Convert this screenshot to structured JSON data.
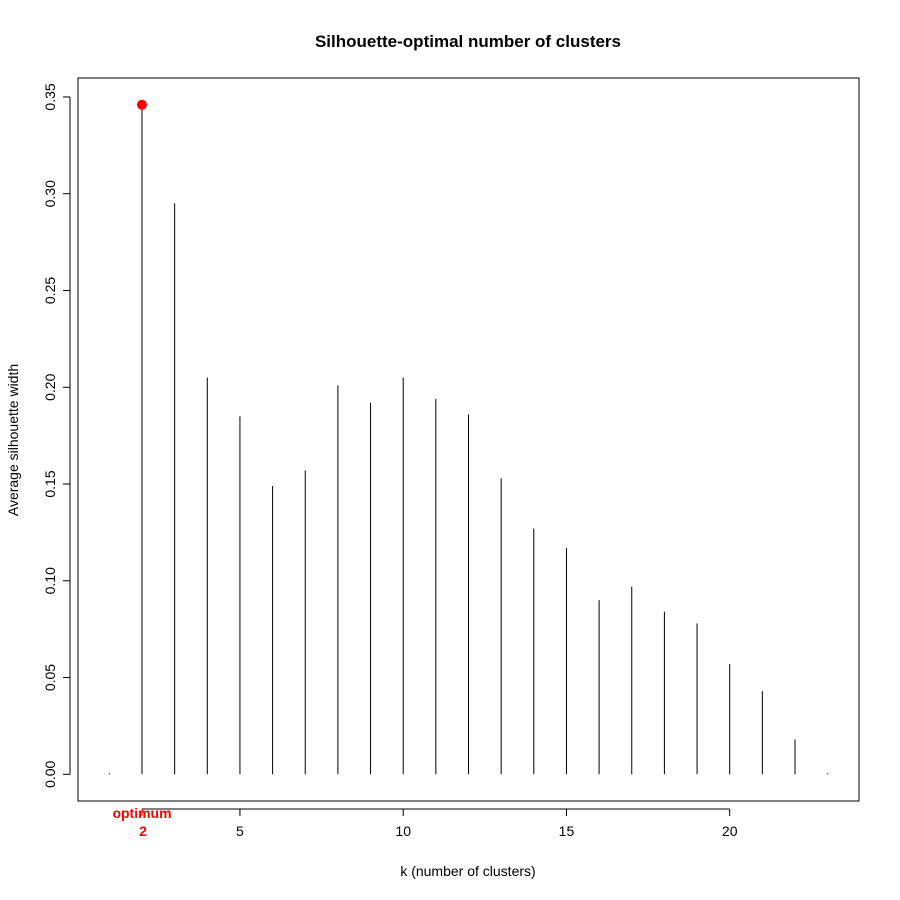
{
  "chart_data": {
    "type": "line",
    "subtype": "histogram-spikes",
    "title": "Silhouette-optimal number of clusters",
    "xlabel": "k (number of clusters)",
    "ylabel": "Average silhouette width",
    "x": [
      1,
      2,
      3,
      4,
      5,
      6,
      7,
      8,
      9,
      10,
      11,
      12,
      13,
      14,
      15,
      16,
      17,
      18,
      19,
      20,
      21,
      22,
      23
    ],
    "values": [
      0.0,
      0.346,
      0.295,
      0.205,
      0.185,
      0.149,
      0.157,
      0.201,
      0.192,
      0.205,
      0.194,
      0.186,
      0.153,
      0.127,
      0.117,
      0.09,
      0.097,
      0.084,
      0.078,
      0.057,
      0.043,
      0.018,
      0.0
    ],
    "xlim": [
      0.04,
      23.96
    ],
    "ylim": [
      -0.0138,
      0.3598
    ],
    "x_ticks": [
      5,
      10,
      15,
      20
    ],
    "y_ticks": [
      0.0,
      0.05,
      0.1,
      0.15,
      0.2,
      0.25,
      0.3,
      0.35
    ],
    "y_tick_labels": [
      "0.00",
      "0.05",
      "0.10",
      "0.15",
      "0.20",
      "0.25",
      "0.30",
      "0.35"
    ],
    "optimum": {
      "k": 2,
      "value": 0.346,
      "label": "optimum",
      "tick_label": "2",
      "color": "#ff0000"
    },
    "grid": false,
    "legend": "none"
  }
}
